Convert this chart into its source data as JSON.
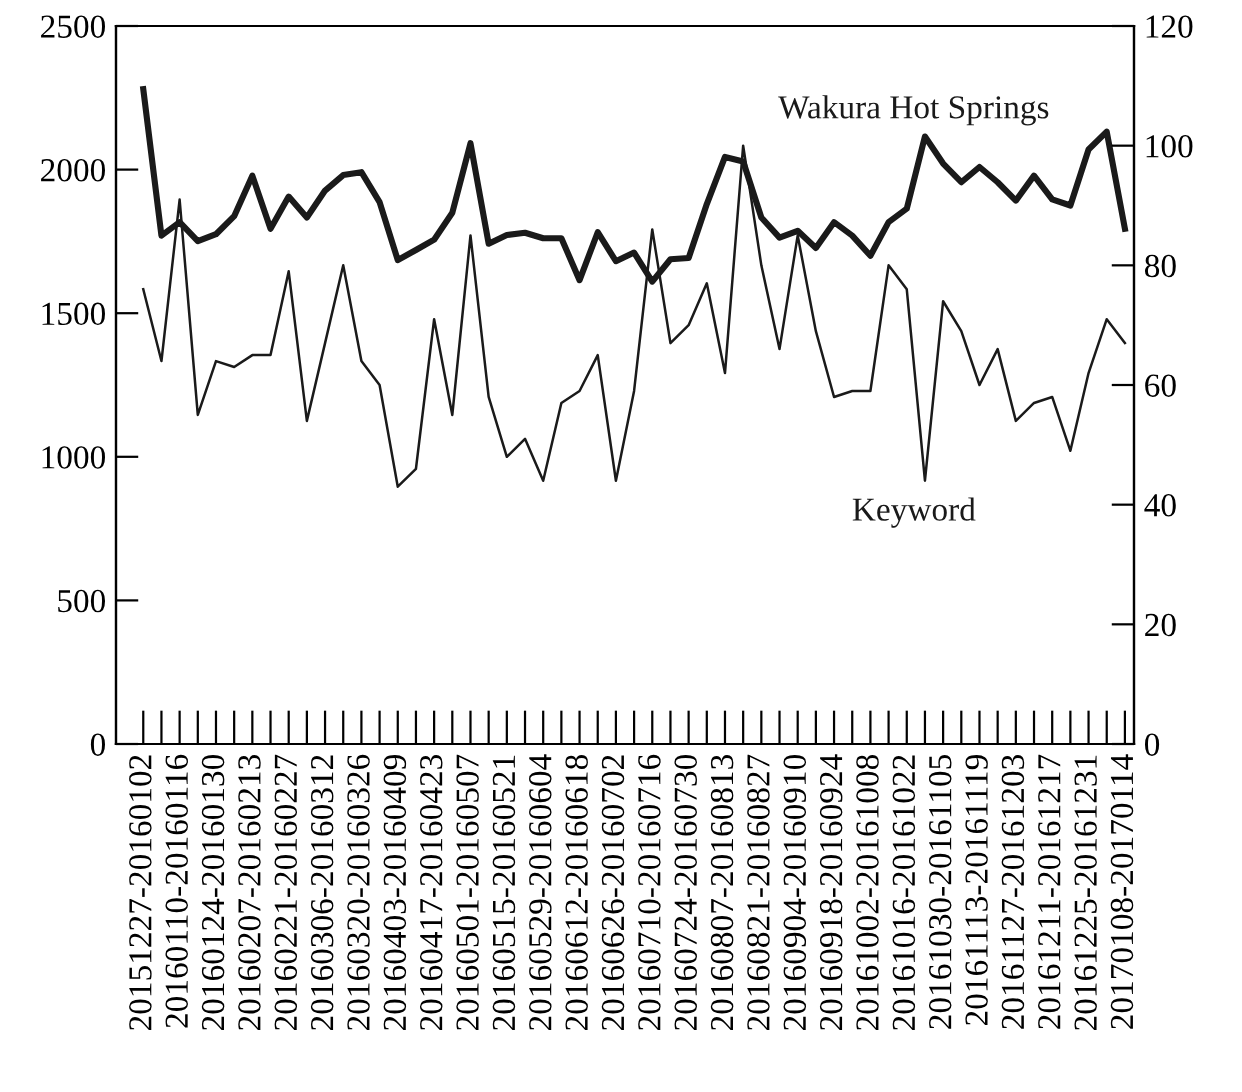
{
  "chart_data": {
    "type": "line",
    "categories": [
      "20151227-20160102",
      null,
      "20160110-20160116",
      null,
      "20160124-20160130",
      null,
      "20160207-20160213",
      null,
      "20160221-20160227",
      null,
      "20160306-20160312",
      null,
      "20160320-20160326",
      null,
      "20160403-20160409",
      null,
      "20160417-20160423",
      null,
      "20160501-20160507",
      null,
      "20160515-20160521",
      null,
      "20160529-20160604",
      null,
      "20160612-20160618",
      null,
      "20160626-20160702",
      null,
      "20160710-20160716",
      null,
      "20160724-20160730",
      null,
      "20160807-20160813",
      null,
      "20160821-20160827",
      null,
      "20160904-20160910",
      null,
      "20160918-20160924",
      null,
      "20161002-20161008",
      null,
      "20161016-20161022",
      null,
      "20161030-20161105",
      null,
      "20161113-20161119",
      null,
      "20161127-20161203",
      null,
      "20161211-20161217",
      null,
      "20161225-20161231",
      null,
      "20170108-20170114"
    ],
    "series": [
      {
        "name": "Wakura Hot Springs",
        "color": "#1a1a1a",
        "values": [
          2280,
          1770,
          1817,
          1751,
          1775,
          1838,
          1979,
          1794,
          1906,
          1833,
          1927,
          1981,
          1991,
          1887,
          1685,
          1720,
          1756,
          1850,
          2092,
          1742,
          1772,
          1780,
          1761,
          1761,
          1615,
          1782,
          1681,
          1711,
          1610,
          1688,
          1692,
          1880,
          2044,
          2028,
          1833,
          1763,
          1787,
          1727,
          1817,
          1770,
          1700,
          1817,
          1864,
          2115,
          2021,
          1956,
          2009,
          1956,
          1892,
          1979,
          1896,
          1875,
          2070,
          2132,
          1794
        ]
      },
      {
        "name": "Keyword",
        "color": "#1a1a1a",
        "axis": "y2",
        "values": [
          76,
          64,
          91,
          55,
          64,
          63,
          65,
          65,
          79,
          54,
          67,
          80,
          64,
          60,
          43,
          46,
          71,
          55,
          85,
          58,
          48,
          51,
          44,
          57,
          59,
          65,
          44,
          59,
          86,
          67,
          70,
          77,
          62,
          100,
          80,
          66,
          85,
          69,
          58,
          59,
          59,
          80,
          76,
          44,
          74,
          69,
          60,
          66,
          54,
          57,
          58,
          49,
          62,
          71,
          67
        ]
      }
    ],
    "ylim": [
      0,
      2500
    ],
    "yticks": [
      0,
      500,
      1000,
      1500,
      2000,
      2500
    ],
    "y2lim": [
      0,
      120
    ],
    "y2ticks": [
      0,
      20,
      40,
      60,
      80,
      100,
      120
    ],
    "grid": false,
    "legend": false,
    "marker": "none",
    "line_style": "solid"
  }
}
